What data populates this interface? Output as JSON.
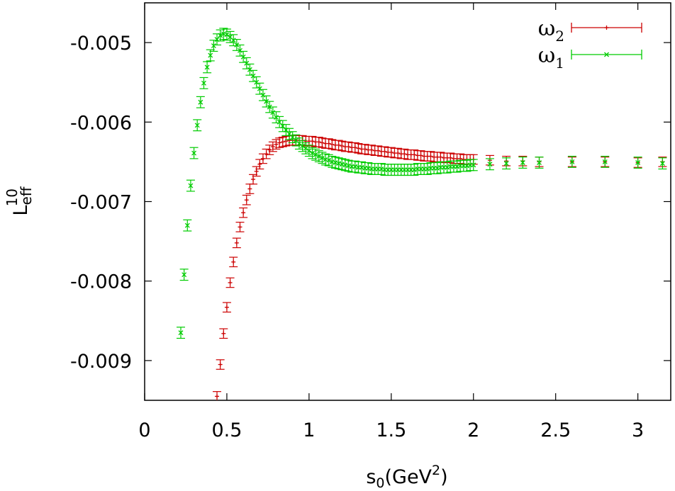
{
  "chart_data": {
    "type": "scatter",
    "xlabel": "s0(GeV2)",
    "ylabel": "Leff10",
    "xlabel_parts": {
      "base": "s",
      "sub": "0",
      "mid": "(GeV",
      "sup": "2",
      "end": ")"
    },
    "ylabel_parts": {
      "base": "L",
      "sub": "eff",
      "sup": "10"
    },
    "xlim": [
      0,
      3.2
    ],
    "ylim": [
      -0.0095,
      -0.0045
    ],
    "grid": false,
    "legend_position": "top-right",
    "x_ticks": [
      0,
      0.5,
      1,
      1.5,
      2,
      2.5,
      3
    ],
    "x_tick_labels": [
      "0",
      "0.5",
      "1",
      "1.5",
      "2",
      "2.5",
      "3"
    ],
    "y_ticks": [
      -0.009,
      -0.008,
      -0.007,
      -0.006,
      -0.005
    ],
    "y_tick_labels": [
      "-0.009",
      "-0.008",
      "-0.007",
      "-0.006",
      "-0.005"
    ],
    "series": [
      {
        "name": "ω2",
        "legend": {
          "base": "ω",
          "sub": "2"
        },
        "color": "#cc0000",
        "marker": "plus",
        "err": 6e-05,
        "x": [
          0.44,
          0.46,
          0.48,
          0.5,
          0.52,
          0.54,
          0.56,
          0.58,
          0.6,
          0.62,
          0.64,
          0.66,
          0.68,
          0.7,
          0.72,
          0.74,
          0.76,
          0.78,
          0.8,
          0.82,
          0.84,
          0.86,
          0.88,
          0.9,
          0.92,
          0.94,
          0.96,
          0.98,
          1.0,
          1.02,
          1.04,
          1.06,
          1.08,
          1.1,
          1.12,
          1.14,
          1.16,
          1.18,
          1.2,
          1.22,
          1.24,
          1.26,
          1.28,
          1.3,
          1.32,
          1.34,
          1.36,
          1.38,
          1.4,
          1.42,
          1.44,
          1.46,
          1.48,
          1.5,
          1.52,
          1.54,
          1.56,
          1.58,
          1.6,
          1.62,
          1.64,
          1.66,
          1.68,
          1.7,
          1.72,
          1.74,
          1.76,
          1.78,
          1.8,
          1.82,
          1.84,
          1.86,
          1.88,
          1.9,
          1.92,
          1.94,
          1.96,
          1.98,
          2.0,
          2.1,
          2.2,
          2.3,
          2.4,
          2.6,
          2.8,
          3.0,
          3.15
        ],
        "y": [
          -0.00945,
          -0.00905,
          -0.00866,
          -0.00833,
          -0.00802,
          -0.00776,
          -0.00752,
          -0.00732,
          -0.00714,
          -0.00698,
          -0.00684,
          -0.00672,
          -0.00662,
          -0.00653,
          -0.00646,
          -0.0064,
          -0.00635,
          -0.00631,
          -0.00628,
          -0.00626,
          -0.00625,
          -0.00624,
          -0.00623,
          -0.00623,
          -0.00623,
          -0.00623,
          -0.00623,
          -0.00624,
          -0.00624,
          -0.00624,
          -0.00625,
          -0.00625,
          -0.00626,
          -0.00627,
          -0.00627,
          -0.00628,
          -0.00629,
          -0.00629,
          -0.0063,
          -0.00631,
          -0.00631,
          -0.00632,
          -0.00632,
          -0.00633,
          -0.00634,
          -0.00634,
          -0.00635,
          -0.00635,
          -0.00636,
          -0.00636,
          -0.00637,
          -0.00637,
          -0.00638,
          -0.00638,
          -0.00639,
          -0.00639,
          -0.0064,
          -0.0064,
          -0.00641,
          -0.00641,
          -0.00641,
          -0.00642,
          -0.00642,
          -0.00643,
          -0.00643,
          -0.00643,
          -0.00644,
          -0.00644,
          -0.00644,
          -0.00645,
          -0.00645,
          -0.00645,
          -0.00646,
          -0.00646,
          -0.00646,
          -0.00647,
          -0.00647,
          -0.00647,
          -0.00647,
          -0.00648,
          -0.00649,
          -0.00649,
          -0.0065,
          -0.0065,
          -0.0065,
          -0.00651,
          -0.0065
        ]
      },
      {
        "name": "ω1",
        "legend": {
          "base": "ω",
          "sub": "1"
        },
        "color": "#00cc00",
        "marker": "cross",
        "err": 7e-05,
        "x": [
          0.22,
          0.24,
          0.26,
          0.28,
          0.3,
          0.32,
          0.34,
          0.36,
          0.38,
          0.4,
          0.42,
          0.44,
          0.46,
          0.48,
          0.5,
          0.52,
          0.54,
          0.56,
          0.58,
          0.6,
          0.62,
          0.64,
          0.66,
          0.68,
          0.7,
          0.72,
          0.74,
          0.76,
          0.78,
          0.8,
          0.82,
          0.84,
          0.86,
          0.88,
          0.9,
          0.92,
          0.94,
          0.96,
          0.98,
          1.0,
          1.02,
          1.04,
          1.06,
          1.08,
          1.1,
          1.12,
          1.14,
          1.16,
          1.18,
          1.2,
          1.22,
          1.24,
          1.26,
          1.28,
          1.3,
          1.32,
          1.34,
          1.36,
          1.38,
          1.4,
          1.42,
          1.44,
          1.46,
          1.48,
          1.5,
          1.52,
          1.54,
          1.56,
          1.58,
          1.6,
          1.62,
          1.64,
          1.66,
          1.68,
          1.7,
          1.72,
          1.74,
          1.76,
          1.78,
          1.8,
          1.82,
          1.84,
          1.86,
          1.88,
          1.9,
          1.92,
          1.94,
          1.96,
          1.98,
          2.0,
          2.1,
          2.2,
          2.3,
          2.4,
          2.6,
          2.8,
          3.0,
          3.15
        ],
        "y": [
          -0.00865,
          -0.00792,
          -0.0073,
          -0.0068,
          -0.00639,
          -0.00604,
          -0.00575,
          -0.00551,
          -0.00531,
          -0.00516,
          -0.00504,
          -0.00496,
          -0.00491,
          -0.00489,
          -0.0049,
          -0.00493,
          -0.00497,
          -0.00503,
          -0.0051,
          -0.00518,
          -0.00526,
          -0.00534,
          -0.00542,
          -0.0055,
          -0.00558,
          -0.00566,
          -0.00574,
          -0.00581,
          -0.00588,
          -0.00594,
          -0.006,
          -0.00605,
          -0.0061,
          -0.00615,
          -0.00619,
          -0.00623,
          -0.00627,
          -0.0063,
          -0.00633,
          -0.00636,
          -0.00639,
          -0.00641,
          -0.00643,
          -0.00645,
          -0.00647,
          -0.00648,
          -0.0065,
          -0.00651,
          -0.00652,
          -0.00653,
          -0.00654,
          -0.00655,
          -0.00656,
          -0.00656,
          -0.00657,
          -0.00657,
          -0.00658,
          -0.00658,
          -0.00659,
          -0.00659,
          -0.00659,
          -0.00659,
          -0.0066,
          -0.0066,
          -0.0066,
          -0.0066,
          -0.0066,
          -0.0066,
          -0.0066,
          -0.0066,
          -0.0066,
          -0.0066,
          -0.00659,
          -0.00659,
          -0.00659,
          -0.00659,
          -0.00658,
          -0.00658,
          -0.00658,
          -0.00657,
          -0.00657,
          -0.00657,
          -0.00656,
          -0.00656,
          -0.00656,
          -0.00655,
          -0.00655,
          -0.00655,
          -0.00654,
          -0.00654,
          -0.00653,
          -0.00652,
          -0.00651,
          -0.00651,
          -0.0065,
          -0.0065,
          -0.00651,
          -0.00652
        ]
      }
    ]
  }
}
